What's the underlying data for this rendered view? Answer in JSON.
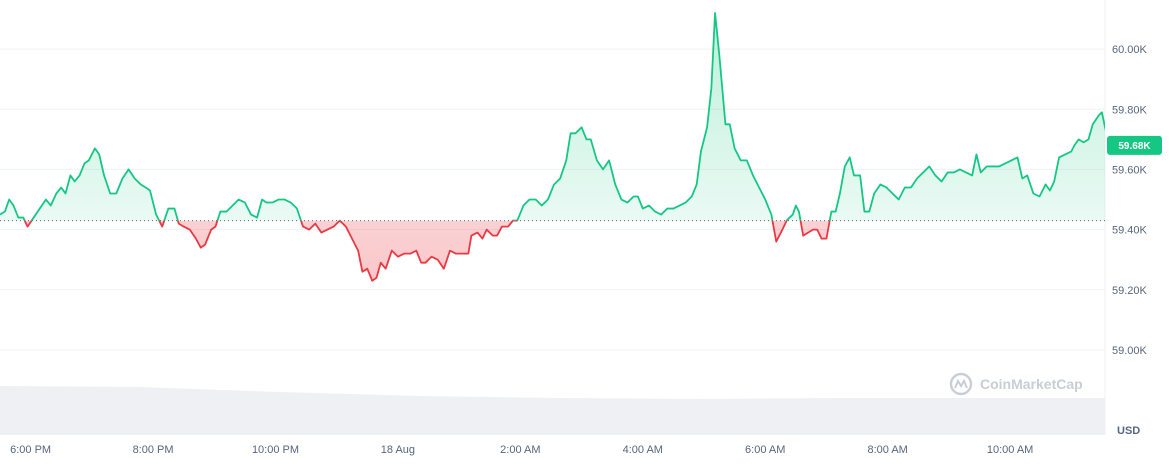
{
  "chart_data": {
    "type": "area",
    "currency": "USD",
    "ylim": [
      58900,
      60130
    ],
    "baseline": 59430,
    "current_price_label": "59.68K",
    "watermark": "CoinMarketCap",
    "colors": {
      "up": "#16c784",
      "down": "#ea3943",
      "up_fill": "#16c784",
      "down_fill": "#ea3943",
      "label_bg": "#16c784",
      "volume": "#eef0f4",
      "grid": "#eff2f5"
    },
    "yticks": [
      {
        "value": 60000,
        "label": "60.00K"
      },
      {
        "value": 59800,
        "label": "59.80K"
      },
      {
        "value": 59600,
        "label": "59.60K"
      },
      {
        "value": 59400,
        "label": "59.40K"
      },
      {
        "value": 59200,
        "label": "59.20K"
      },
      {
        "value": 59000,
        "label": "59.00K"
      }
    ],
    "xticks": [
      {
        "t": 0.5,
        "label": "6:00 PM"
      },
      {
        "t": 2.5,
        "label": "8:00 PM"
      },
      {
        "t": 4.5,
        "label": "10:00 PM"
      },
      {
        "t": 6.5,
        "label": "18 Aug"
      },
      {
        "t": 8.5,
        "label": "2:00 AM"
      },
      {
        "t": 10.5,
        "label": "4:00 AM"
      },
      {
        "t": 12.5,
        "label": "6:00 AM"
      },
      {
        "t": 14.5,
        "label": "8:00 AM"
      },
      {
        "t": 16.5,
        "label": "10:00 AM"
      }
    ],
    "x_range": [
      0.0,
      18.05
    ],
    "series": [
      {
        "points": [
          [
            0.0,
            59450
          ],
          [
            0.08,
            59460
          ],
          [
            0.15,
            59500
          ],
          [
            0.22,
            59480
          ],
          [
            0.3,
            59440
          ],
          [
            0.38,
            59440
          ],
          [
            0.45,
            59410
          ],
          [
            0.55,
            59440
          ],
          [
            0.65,
            59470
          ],
          [
            0.75,
            59500
          ],
          [
            0.83,
            59480
          ],
          [
            0.92,
            59520
          ],
          [
            1.0,
            59540
          ],
          [
            1.07,
            59520
          ],
          [
            1.15,
            59580
          ],
          [
            1.22,
            59560
          ],
          [
            1.3,
            59580
          ],
          [
            1.38,
            59620
          ],
          [
            1.45,
            59630
          ],
          [
            1.55,
            59670
          ],
          [
            1.62,
            59650
          ],
          [
            1.7,
            59580
          ],
          [
            1.8,
            59520
          ],
          [
            1.9,
            59520
          ],
          [
            2.0,
            59570
          ],
          [
            2.1,
            59600
          ],
          [
            2.2,
            59570
          ],
          [
            2.3,
            59550
          ],
          [
            2.38,
            59540
          ],
          [
            2.45,
            59530
          ],
          [
            2.55,
            59450
          ],
          [
            2.65,
            59410
          ],
          [
            2.75,
            59470
          ],
          [
            2.85,
            59470
          ],
          [
            2.92,
            59420
          ],
          [
            3.0,
            59410
          ],
          [
            3.1,
            59400
          ],
          [
            3.2,
            59370
          ],
          [
            3.28,
            59340
          ],
          [
            3.35,
            59350
          ],
          [
            3.45,
            59400
          ],
          [
            3.52,
            59410
          ],
          [
            3.6,
            59460
          ],
          [
            3.7,
            59460
          ],
          [
            3.8,
            59480
          ],
          [
            3.9,
            59500
          ],
          [
            4.0,
            59490
          ],
          [
            4.1,
            59450
          ],
          [
            4.2,
            59440
          ],
          [
            4.28,
            59500
          ],
          [
            4.35,
            59490
          ],
          [
            4.45,
            59490
          ],
          [
            4.55,
            59500
          ],
          [
            4.65,
            59500
          ],
          [
            4.75,
            59490
          ],
          [
            4.85,
            59470
          ],
          [
            4.95,
            59410
          ],
          [
            5.05,
            59400
          ],
          [
            5.15,
            59420
          ],
          [
            5.25,
            59390
          ],
          [
            5.35,
            59400
          ],
          [
            5.45,
            59410
          ],
          [
            5.55,
            59430
          ],
          [
            5.65,
            59410
          ],
          [
            5.75,
            59370
          ],
          [
            5.85,
            59330
          ],
          [
            5.92,
            59260
          ],
          [
            6.0,
            59270
          ],
          [
            6.08,
            59230
          ],
          [
            6.15,
            59240
          ],
          [
            6.22,
            59290
          ],
          [
            6.3,
            59270
          ],
          [
            6.4,
            59330
          ],
          [
            6.5,
            59310
          ],
          [
            6.6,
            59320
          ],
          [
            6.7,
            59320
          ],
          [
            6.8,
            59330
          ],
          [
            6.88,
            59290
          ],
          [
            6.95,
            59290
          ],
          [
            7.05,
            59310
          ],
          [
            7.15,
            59300
          ],
          [
            7.25,
            59270
          ],
          [
            7.35,
            59330
          ],
          [
            7.45,
            59320
          ],
          [
            7.55,
            59320
          ],
          [
            7.65,
            59320
          ],
          [
            7.7,
            59380
          ],
          [
            7.8,
            59390
          ],
          [
            7.88,
            59370
          ],
          [
            7.95,
            59400
          ],
          [
            8.05,
            59380
          ],
          [
            8.12,
            59380
          ],
          [
            8.2,
            59410
          ],
          [
            8.3,
            59410
          ],
          [
            8.38,
            59430
          ],
          [
            8.45,
            59430
          ],
          [
            8.55,
            59480
          ],
          [
            8.65,
            59500
          ],
          [
            8.75,
            59500
          ],
          [
            8.85,
            59480
          ],
          [
            8.95,
            59500
          ],
          [
            9.05,
            59550
          ],
          [
            9.15,
            59570
          ],
          [
            9.25,
            59630
          ],
          [
            9.32,
            59720
          ],
          [
            9.4,
            59720
          ],
          [
            9.5,
            59740
          ],
          [
            9.58,
            59700
          ],
          [
            9.65,
            59700
          ],
          [
            9.75,
            59630
          ],
          [
            9.85,
            59600
          ],
          [
            9.95,
            59630
          ],
          [
            10.05,
            59550
          ],
          [
            10.15,
            59500
          ],
          [
            10.25,
            59490
          ],
          [
            10.35,
            59510
          ],
          [
            10.42,
            59510
          ],
          [
            10.5,
            59470
          ],
          [
            10.6,
            59480
          ],
          [
            10.7,
            59460
          ],
          [
            10.8,
            59450
          ],
          [
            10.9,
            59470
          ],
          [
            11.0,
            59470
          ],
          [
            11.1,
            59480
          ],
          [
            11.2,
            59490
          ],
          [
            11.3,
            59510
          ],
          [
            11.38,
            59550
          ],
          [
            11.45,
            59660
          ],
          [
            11.55,
            59740
          ],
          [
            11.62,
            59870
          ],
          [
            11.68,
            60120
          ],
          [
            11.75,
            59980
          ],
          [
            11.85,
            59750
          ],
          [
            11.92,
            59750
          ],
          [
            12.0,
            59670
          ],
          [
            12.1,
            59630
          ],
          [
            12.2,
            59630
          ],
          [
            12.3,
            59580
          ],
          [
            12.4,
            59540
          ],
          [
            12.5,
            59500
          ],
          [
            12.6,
            59450
          ],
          [
            12.68,
            59360
          ],
          [
            12.78,
            59400
          ],
          [
            12.85,
            59430
          ],
          [
            12.95,
            59450
          ],
          [
            13.0,
            59480
          ],
          [
            13.05,
            59460
          ],
          [
            13.12,
            59380
          ],
          [
            13.2,
            59390
          ],
          [
            13.28,
            59400
          ],
          [
            13.35,
            59400
          ],
          [
            13.42,
            59370
          ],
          [
            13.5,
            59370
          ],
          [
            13.58,
            59460
          ],
          [
            13.65,
            59460
          ],
          [
            13.72,
            59520
          ],
          [
            13.8,
            59610
          ],
          [
            13.88,
            59640
          ],
          [
            13.95,
            59580
          ],
          [
            14.05,
            59580
          ],
          [
            14.12,
            59460
          ],
          [
            14.2,
            59460
          ],
          [
            14.28,
            59520
          ],
          [
            14.38,
            59550
          ],
          [
            14.48,
            59540
          ],
          [
            14.58,
            59520
          ],
          [
            14.68,
            59500
          ],
          [
            14.78,
            59540
          ],
          [
            14.88,
            59540
          ],
          [
            14.98,
            59570
          ],
          [
            15.08,
            59590
          ],
          [
            15.18,
            59610
          ],
          [
            15.28,
            59580
          ],
          [
            15.38,
            59560
          ],
          [
            15.48,
            59590
          ],
          [
            15.58,
            59590
          ],
          [
            15.68,
            59600
          ],
          [
            15.78,
            59590
          ],
          [
            15.88,
            59580
          ],
          [
            15.95,
            59650
          ],
          [
            16.02,
            59590
          ],
          [
            16.12,
            59610
          ],
          [
            16.22,
            59610
          ],
          [
            16.32,
            59610
          ],
          [
            16.42,
            59620
          ],
          [
            16.52,
            59630
          ],
          [
            16.62,
            59640
          ],
          [
            16.7,
            59570
          ],
          [
            16.78,
            59580
          ],
          [
            16.88,
            59520
          ],
          [
            16.98,
            59510
          ],
          [
            17.08,
            59550
          ],
          [
            17.15,
            59530
          ],
          [
            17.22,
            59560
          ],
          [
            17.3,
            59640
          ],
          [
            17.4,
            59650
          ],
          [
            17.5,
            59660
          ],
          [
            17.55,
            59680
          ],
          [
            17.62,
            59700
          ],
          [
            17.7,
            59690
          ],
          [
            17.78,
            59700
          ],
          [
            17.85,
            59750
          ],
          [
            17.95,
            59780
          ],
          [
            18.0,
            59790
          ],
          [
            18.05,
            59740
          ],
          [
            18.1,
            59700
          ],
          [
            18.2,
            59680
          ]
        ]
      }
    ]
  }
}
